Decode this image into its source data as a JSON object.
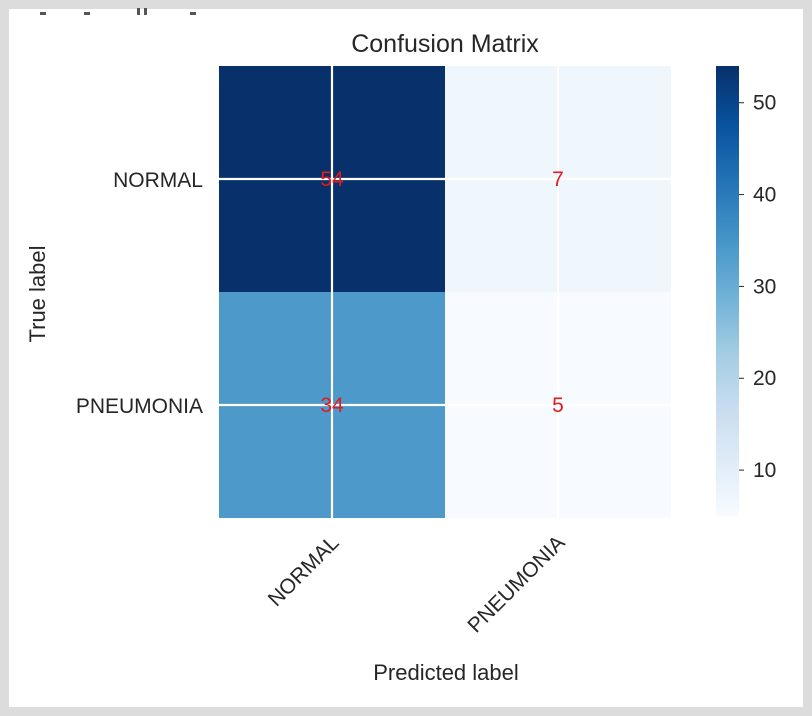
{
  "chart_data": {
    "type": "heatmap",
    "title": "Confusion Matrix",
    "xlabel": "Predicted label",
    "ylabel": "True label",
    "x_categories": [
      "NORMAL",
      "PNEUMONIA"
    ],
    "y_categories": [
      "NORMAL",
      "PNEUMONIA"
    ],
    "values": [
      [
        54,
        7
      ],
      [
        34,
        5
      ]
    ],
    "value_label_color": "#e41a1c",
    "colormap": "Blues",
    "colorbar": {
      "range": [
        5,
        54
      ],
      "ticks": [
        10,
        20,
        30,
        40,
        50
      ]
    },
    "grid": true
  }
}
